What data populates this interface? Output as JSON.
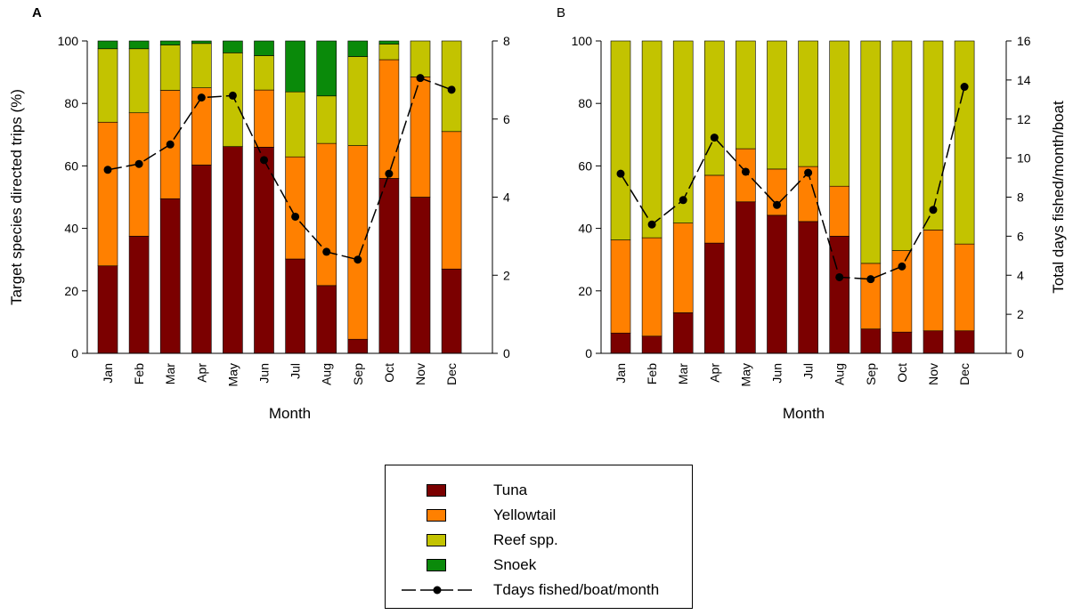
{
  "colors": {
    "Tuna": "#7b0000",
    "Yellowtail": "#ff8000",
    "Reef spp.": "#c3c300",
    "Snoek": "#0a8a0a",
    "line": "#000000"
  },
  "legend": {
    "items": [
      {
        "label": "Tuna",
        "key": "Tuna"
      },
      {
        "label": "Yellowtail",
        "key": "Yellowtail"
      },
      {
        "label": "Reef spp.",
        "key": "Reef spp."
      },
      {
        "label": "Snoek",
        "key": "Snoek"
      },
      {
        "label": "Tdays fished/boat/month",
        "key": "line"
      }
    ]
  },
  "chart_data": [
    {
      "type": "bar",
      "stacked": true,
      "panel_label": "A",
      "xlabel": "Month",
      "ylabel": "Target species directed trips (%)",
      "ylim": [
        0,
        100
      ],
      "yticks": [
        0,
        20,
        40,
        60,
        80,
        100
      ],
      "y2label": "",
      "y2lim": [
        0,
        8
      ],
      "y2ticks": [
        0,
        2,
        4,
        6,
        8
      ],
      "categories": [
        "Jan",
        "Feb",
        "Mar",
        "Apr",
        "May",
        "Jun",
        "Jul",
        "Aug",
        "Sep",
        "Oct",
        "Nov",
        "Dec"
      ],
      "series": [
        {
          "name": "Tuna",
          "values": [
            28,
            37.5,
            49.5,
            60.3,
            66.2,
            66,
            30.2,
            21.7,
            4.5,
            56,
            50,
            27
          ]
        },
        {
          "name": "Yellowtail",
          "values": [
            46,
            39.5,
            34.7,
            24.7,
            0,
            18.3,
            32.7,
            45.5,
            62,
            38,
            38.5,
            44
          ]
        },
        {
          "name": "Reef spp.",
          "values": [
            23.5,
            20.5,
            14.5,
            14.2,
            30,
            11,
            20.8,
            15.2,
            28.5,
            5,
            11.5,
            29
          ]
        },
        {
          "name": "Snoek",
          "values": [
            2.5,
            2.5,
            1.3,
            0.8,
            3.8,
            4.7,
            16.3,
            17.6,
            5,
            1,
            0,
            0
          ]
        }
      ],
      "line": {
        "name": "Tdays fished/boat/month",
        "axis": "right",
        "values": [
          4.7,
          4.85,
          5.35,
          6.55,
          6.6,
          4.95,
          3.5,
          2.6,
          2.4,
          4.6,
          7.05,
          6.75
        ]
      }
    },
    {
      "type": "bar",
      "stacked": true,
      "panel_label": "B",
      "xlabel": "Month",
      "ylabel": "",
      "ylim": [
        0,
        100
      ],
      "yticks": [
        0,
        20,
        40,
        60,
        80,
        100
      ],
      "y2label": "Total days fished/month/boat",
      "y2lim": [
        0,
        16
      ],
      "y2ticks": [
        0,
        2,
        4,
        6,
        8,
        10,
        12,
        14,
        16
      ],
      "categories": [
        "Jan",
        "Feb",
        "Mar",
        "Apr",
        "May",
        "Jun",
        "Jul",
        "Aug",
        "Sep",
        "Oct",
        "Nov",
        "Dec"
      ],
      "series": [
        {
          "name": "Tuna",
          "values": [
            6.5,
            5.5,
            13,
            35.3,
            48.5,
            44.2,
            42.2,
            37.5,
            7.8,
            6.8,
            7.2,
            7.2
          ]
        },
        {
          "name": "Yellowtail",
          "values": [
            29.8,
            31.5,
            28.7,
            21.7,
            17,
            14.8,
            17.6,
            16,
            21,
            26.1,
            32.3,
            27.8
          ]
        },
        {
          "name": "Reef spp.",
          "values": [
            63.7,
            63,
            58.3,
            43,
            34.5,
            41,
            40.2,
            46.5,
            71.2,
            67.1,
            60.5,
            65
          ]
        },
        {
          "name": "Snoek",
          "values": [
            0,
            0,
            0,
            0,
            0,
            0,
            0,
            0,
            0,
            0,
            0,
            0
          ]
        }
      ],
      "line": {
        "name": "Tdays fished/boat/month",
        "axis": "right",
        "values": [
          9.2,
          6.6,
          7.85,
          11.05,
          9.3,
          7.6,
          9.25,
          3.9,
          3.8,
          4.45,
          7.35,
          13.65
        ]
      }
    }
  ]
}
